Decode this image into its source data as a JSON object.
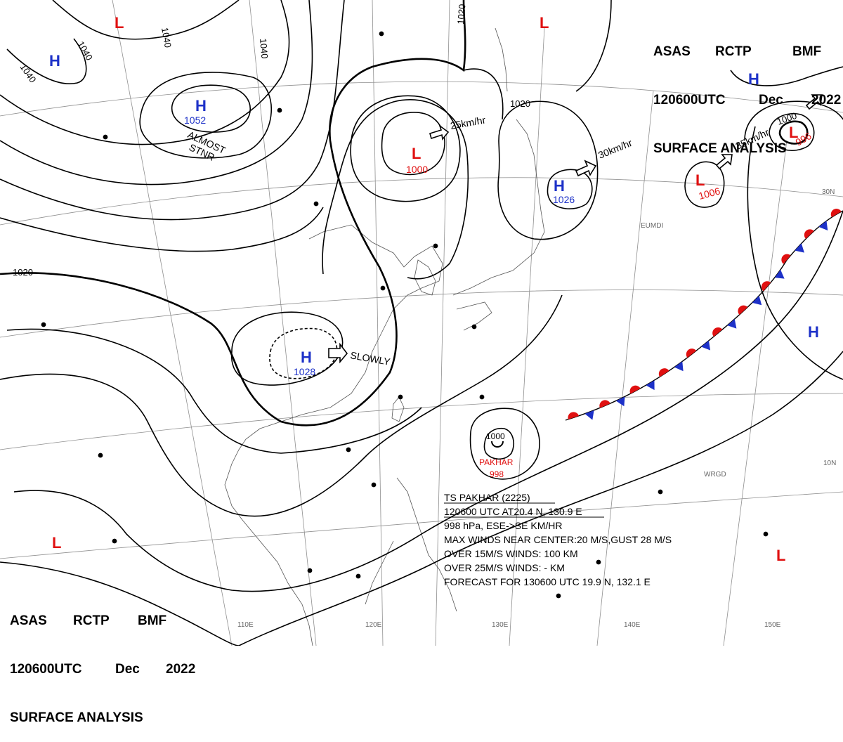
{
  "header": {
    "agency_line": [
      "ASAS",
      "RCTP",
      "BMF"
    ],
    "time_line": [
      "120600UTC",
      "Dec",
      "2022"
    ],
    "product": "SURFACE ANALYSIS"
  },
  "colors": {
    "high": "#1d31c8",
    "low": "#e01010",
    "front_cold": "#1d31c8",
    "front_warm": "#e01010",
    "isobar": "#000000",
    "grid": "#8a8a8a"
  },
  "pressure_centers": [
    {
      "type": "H",
      "value": "1052"
    },
    {
      "type": "H",
      "value": "1026"
    },
    {
      "type": "H",
      "value": "1028"
    },
    {
      "type": "L",
      "value": "1000"
    },
    {
      "type": "L",
      "value": "1006"
    },
    {
      "type": "L",
      "value": "996"
    },
    {
      "type": "H",
      "value": ""
    },
    {
      "type": "H",
      "value": ""
    },
    {
      "type": "H",
      "value": ""
    },
    {
      "type": "L",
      "value": ""
    },
    {
      "type": "L",
      "value": ""
    },
    {
      "type": "L",
      "value": ""
    },
    {
      "type": "L",
      "value": ""
    }
  ],
  "isobar_labels": [
    "1040",
    "1040",
    "1040",
    "1040",
    "1020",
    "1020",
    "1020",
    "1000"
  ],
  "motion_labels": [
    "25km/hr",
    "30km/hr",
    "35km/hr",
    "SLOWLY",
    "ALMOST",
    "STNR"
  ],
  "longitude_labels": [
    "110E",
    "120E",
    "130E",
    "140E",
    "150E"
  ],
  "latitude_labels": [
    "30N",
    "10N"
  ],
  "station_ids": [
    "EUMDI",
    "WRGD"
  ],
  "typhoon": {
    "symbol_pressure": "1000",
    "name": "PAKHAR",
    "pressure": "998",
    "lines": [
      "TS PAKHAR (2225)",
      "120600 UTC  AT20.4 N, 130.9 E",
      "998 hPa, ESE->SE   KM/HR",
      "MAX WINDS NEAR CENTER:20 M/S,GUST 28 M/S",
      "OVER 15M/S WINDS: 100 KM",
      "OVER 25M/S WINDS: - KM",
      "FORECAST FOR 130600 UTC 19.9 N, 132.1 E"
    ]
  }
}
